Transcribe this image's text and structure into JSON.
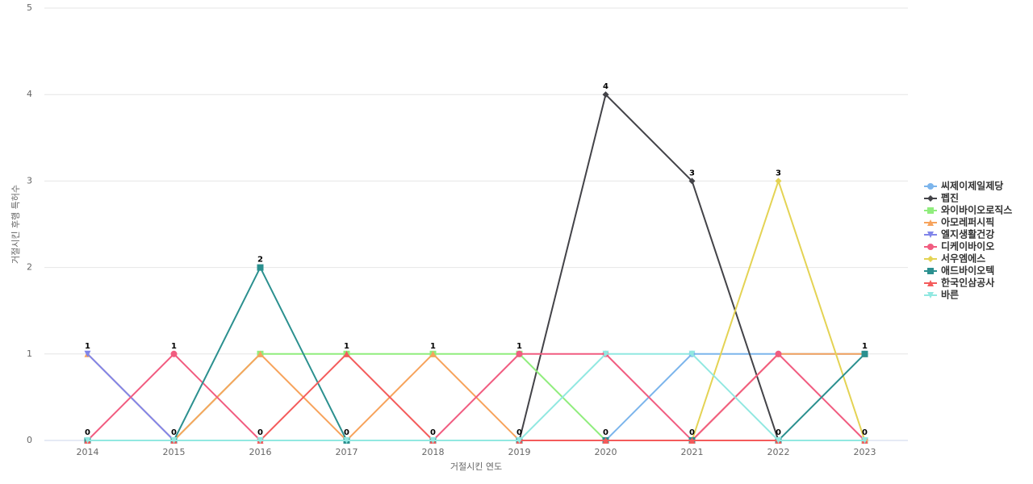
{
  "chart_data": {
    "type": "line",
    "x_label": "거절시킨 연도",
    "y_label": "거절시킨 후행 특허수",
    "categories": [
      "2014",
      "2015",
      "2016",
      "2017",
      "2018",
      "2019",
      "2020",
      "2021",
      "2022",
      "2023"
    ],
    "ylim": [
      0,
      5
    ],
    "yticks": [
      0,
      1,
      2,
      3,
      4,
      5
    ],
    "grid": true,
    "legend": "right",
    "series": [
      {
        "name": "씨제이제일제당",
        "color": "#7cb5ec",
        "symbol": "circle",
        "values": [
          0,
          0,
          0,
          0,
          0,
          0,
          0,
          1,
          1,
          1
        ]
      },
      {
        "name": "펩진",
        "color": "#434348",
        "symbol": "diamond",
        "values": [
          0,
          0,
          0,
          0,
          0,
          0,
          4,
          3,
          0,
          0
        ]
      },
      {
        "name": "와이바이오로직스",
        "color": "#90ed7d",
        "symbol": "square",
        "values": [
          0,
          0,
          1,
          1,
          1,
          1,
          0,
          0,
          0,
          0
        ]
      },
      {
        "name": "아모레퍼시픽",
        "color": "#f7a35c",
        "symbol": "triangle",
        "values": [
          1,
          0,
          1,
          0,
          1,
          0,
          0,
          0,
          1,
          1
        ]
      },
      {
        "name": "엘지생활건강",
        "color": "#8085e9",
        "symbol": "triangle-down",
        "values": [
          1,
          0,
          0,
          0,
          0,
          0,
          0,
          0,
          0,
          0
        ]
      },
      {
        "name": "디케이바이오",
        "color": "#f15c80",
        "symbol": "circle",
        "values": [
          0,
          1,
          0,
          0,
          0,
          1,
          1,
          0,
          1,
          0
        ]
      },
      {
        "name": "서우엠에스",
        "color": "#e4d354",
        "symbol": "diamond",
        "values": [
          0,
          0,
          0,
          0,
          0,
          0,
          0,
          0,
          3,
          0
        ]
      },
      {
        "name": "애드바이오텍",
        "color": "#2b908f",
        "symbol": "square",
        "values": [
          0,
          0,
          2,
          0,
          0,
          0,
          0,
          0,
          0,
          1
        ]
      },
      {
        "name": "한국인삼공사",
        "color": "#f45b5b",
        "symbol": "triangle",
        "values": [
          0,
          0,
          0,
          1,
          0,
          0,
          0,
          0,
          0,
          0
        ]
      },
      {
        "name": "바른",
        "color": "#91e8e1",
        "symbol": "triangle-down",
        "values": [
          0,
          0,
          0,
          0,
          0,
          0,
          1,
          1,
          0,
          0
        ]
      }
    ]
  }
}
